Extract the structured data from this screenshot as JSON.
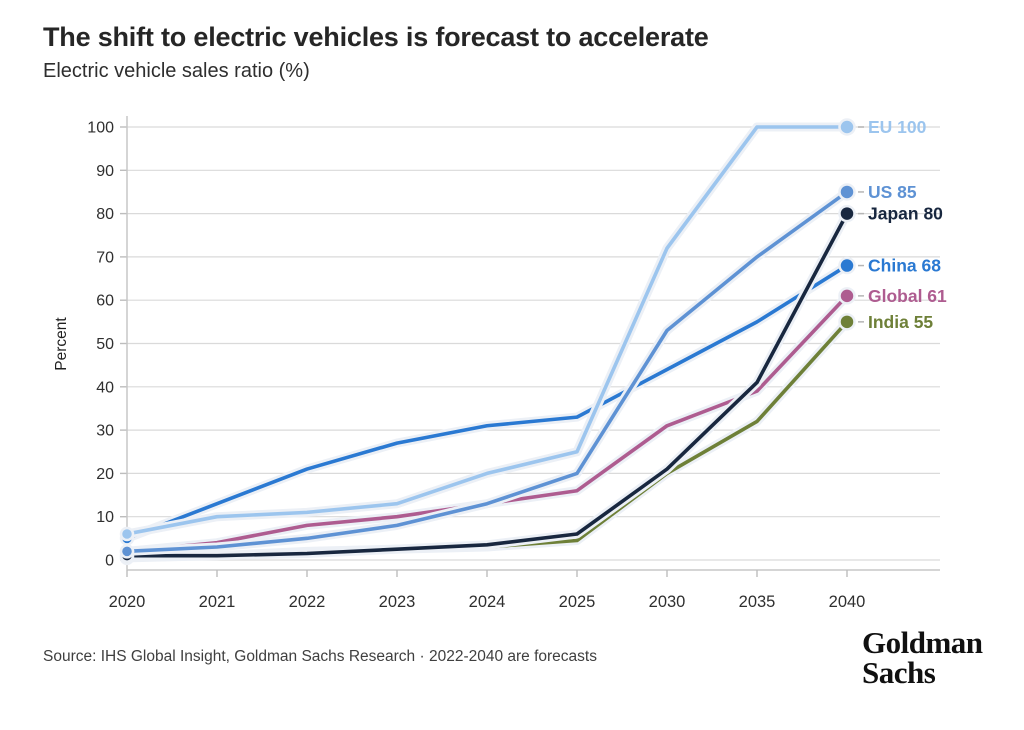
{
  "header": {
    "title": "The shift to electric vehicles is forecast to accelerate",
    "subtitle": "Electric vehicle sales ratio (%)"
  },
  "footer": {
    "source": "Source: IHS Global Insight, Goldman Sachs Research · 2022-2040 are forecasts",
    "logo_line1": "Goldman",
    "logo_line2": "Sachs"
  },
  "chart_data": {
    "type": "line",
    "title": "The shift to electric vehicles is forecast to accelerate",
    "subtitle": "Electric vehicle sales ratio (%)",
    "xlabel": "",
    "ylabel": "Percent",
    "ylim": [
      0,
      100
    ],
    "ytick_step": 10,
    "grid": true,
    "legend_position": "right-of-line-ends",
    "note": "2022-2040 are forecasts",
    "categories": [
      "2020",
      "2021",
      "2022",
      "2023",
      "2024",
      "2025",
      "2030",
      "2035",
      "2040"
    ],
    "series": [
      {
        "name": "EU",
        "label": "EU 100",
        "end_value": 100,
        "color": "#9cc5ee",
        "values": [
          6,
          10,
          11,
          13,
          20,
          25,
          72,
          100,
          100
        ]
      },
      {
        "name": "US",
        "label": "US 85",
        "end_value": 85,
        "color": "#5e92d4",
        "values": [
          2,
          3,
          5,
          8,
          13,
          20,
          53,
          70,
          85
        ]
      },
      {
        "name": "Japan",
        "label": "Japan 80",
        "end_value": 80,
        "color": "#18273f",
        "values": [
          1,
          1,
          1.5,
          2.5,
          3.5,
          6,
          21,
          41,
          80
        ]
      },
      {
        "name": "China",
        "label": "China 68",
        "end_value": 68,
        "color": "#2a79d2",
        "values": [
          5,
          13,
          21,
          27,
          31,
          33,
          44,
          55,
          68
        ]
      },
      {
        "name": "Global",
        "label": "Global 61",
        "end_value": 61,
        "color": "#ae5c90",
        "values": [
          2,
          4,
          8,
          10,
          13,
          16,
          31,
          39,
          61
        ]
      },
      {
        "name": "India",
        "label": "India 55",
        "end_value": 55,
        "color": "#6e8038",
        "values": [
          0.5,
          1,
          2,
          2.5,
          3,
          4.5,
          20,
          32,
          55
        ]
      }
    ]
  }
}
